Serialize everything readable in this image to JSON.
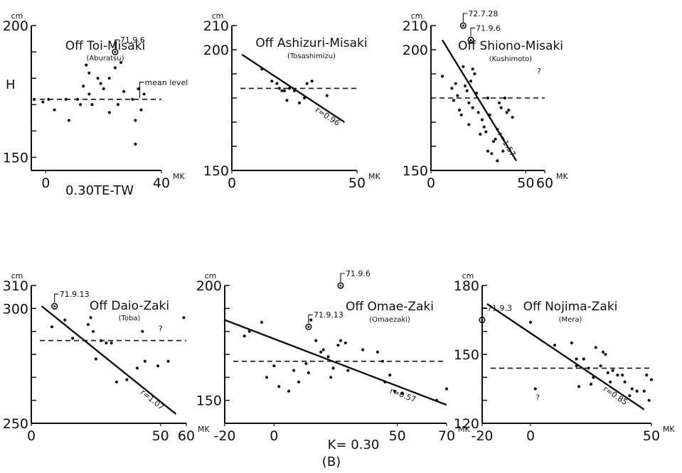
{
  "figure": {
    "caption": "(B)",
    "x_label_top": "0.30TE-TW",
    "x_label_bottom": "K= 0.30"
  },
  "chart_data": [
    {
      "type": "scatter",
      "title": "Off Toi-Misaki",
      "subtitle": "(Aburatsu)",
      "y_unit": "cm",
      "x_unit": "MK",
      "ylabel": "H",
      "xlim": [
        -5,
        40
      ],
      "ylim": [
        145,
        200
      ],
      "x_ticks": [
        {
          "v": 0,
          "label": "0"
        },
        {
          "v": 40,
          "label": "40"
        }
      ],
      "y_ticks": [
        {
          "v": 200,
          "label": "200"
        },
        {
          "v": 150,
          "label": "150"
        }
      ],
      "points": [
        [
          -4,
          172
        ],
        [
          -1,
          171
        ],
        [
          1,
          172
        ],
        [
          3,
          168
        ],
        [
          7,
          172
        ],
        [
          8,
          164
        ],
        [
          11,
          172
        ],
        [
          12,
          170
        ],
        [
          13,
          177
        ],
        [
          14,
          185
        ],
        [
          15,
          182
        ],
        [
          15,
          174
        ],
        [
          16,
          170
        ],
        [
          18,
          180
        ],
        [
          19,
          178
        ],
        [
          20,
          176
        ],
        [
          22,
          180
        ],
        [
          22,
          167
        ],
        [
          24,
          184
        ],
        [
          25,
          170
        ],
        [
          26,
          186
        ],
        [
          27,
          175
        ],
        [
          30,
          172
        ],
        [
          31,
          164
        ],
        [
          31,
          155
        ],
        [
          32,
          176
        ],
        [
          33,
          168
        ],
        [
          34,
          174
        ]
      ],
      "mean_level": 172,
      "mean_level_label": "mean level",
      "highlight": [
        {
          "x": 24,
          "y": 190,
          "label": "71.9.6"
        }
      ]
    },
    {
      "type": "scatter",
      "title": "Off Ashizuri-Misaki",
      "subtitle": "(Tosashimizu)",
      "y_unit": "cm",
      "x_unit": "MK",
      "xlim": [
        0,
        50
      ],
      "ylim": [
        150,
        210
      ],
      "x_ticks": [
        {
          "v": 0,
          "label": "0"
        },
        {
          "v": 50,
          "label": "50"
        }
      ],
      "y_ticks": [
        {
          "v": 210,
          "label": "210"
        },
        {
          "v": 200,
          "label": "200"
        },
        {
          "v": 150,
          "label": "150"
        }
      ],
      "points": [
        [
          12,
          192
        ],
        [
          16,
          187
        ],
        [
          18,
          186
        ],
        [
          19,
          184
        ],
        [
          20,
          183
        ],
        [
          21,
          183
        ],
        [
          22,
          179
        ],
        [
          23,
          184
        ],
        [
          25,
          183
        ],
        [
          27,
          178
        ],
        [
          29,
          180
        ],
        [
          30,
          186
        ],
        [
          32,
          187
        ],
        [
          38,
          181
        ]
      ],
      "mean_level": 184,
      "regression": {
        "x1": 4,
        "y1": 198,
        "x2": 45,
        "y2": 170
      },
      "r_label": "r=0.96"
    },
    {
      "type": "scatter",
      "title": "Off Shiono-Misaki",
      "subtitle": "(Kushimoto)",
      "y_unit": "cm",
      "x_unit": "MK",
      "xlim": [
        0,
        60
      ],
      "ylim": [
        150,
        210
      ],
      "x_ticks": [
        {
          "v": 0,
          "label": "0"
        },
        {
          "v": 50,
          "label": "50"
        },
        {
          "v": 60,
          "label": "60"
        }
      ],
      "y_ticks": [
        {
          "v": 210,
          "label": "210"
        },
        {
          "v": 200,
          "label": "200"
        },
        {
          "v": 150,
          "label": "150"
        }
      ],
      "points": [
        [
          6,
          189
        ],
        [
          11,
          184
        ],
        [
          12,
          179
        ],
        [
          13,
          186
        ],
        [
          14,
          181
        ],
        [
          15,
          175
        ],
        [
          16,
          173
        ],
        [
          17,
          193
        ],
        [
          18,
          185
        ],
        [
          19,
          183
        ],
        [
          20,
          178
        ],
        [
          20,
          169
        ],
        [
          21,
          187
        ],
        [
          22,
          192
        ],
        [
          23,
          190
        ],
        [
          22,
          176
        ],
        [
          24,
          182
        ],
        [
          25,
          174
        ],
        [
          26,
          165
        ],
        [
          27,
          171
        ],
        [
          28,
          168
        ],
        [
          29,
          166
        ],
        [
          30,
          158
        ],
        [
          30,
          180
        ],
        [
          31,
          173
        ],
        [
          32,
          157
        ],
        [
          33,
          162
        ],
        [
          34,
          163
        ],
        [
          35,
          154
        ],
        [
          35,
          167
        ],
        [
          36,
          178
        ],
        [
          37,
          176
        ],
        [
          38,
          158
        ],
        [
          39,
          180
        ],
        [
          40,
          174
        ],
        [
          41,
          175
        ],
        [
          43,
          172
        ]
      ],
      "mean_level": 180,
      "regression": {
        "x1": 6,
        "y1": 204,
        "x2": 45,
        "y2": 154
      },
      "r_label": "r=1.57",
      "highlight": [
        {
          "x": 17,
          "y": 210,
          "label": "72.7.28"
        },
        {
          "x": 21,
          "y": 204,
          "label": "71.9.6"
        }
      ],
      "question_mark": {
        "x": 57,
        "y": 190,
        "label": "?"
      }
    },
    {
      "type": "scatter",
      "title": "Off Daio-Zaki",
      "subtitle": "(Toba)",
      "y_unit": "cm",
      "x_unit": "MK",
      "xlim": [
        0,
        60
      ],
      "ylim": [
        250,
        310
      ],
      "x_ticks": [
        {
          "v": 0,
          "label": "0"
        },
        {
          "v": 50,
          "label": "50"
        },
        {
          "v": 60,
          "label": "60"
        }
      ],
      "y_ticks": [
        {
          "v": 310,
          "label": "310"
        },
        {
          "v": 300,
          "label": "300"
        },
        {
          "v": 250,
          "label": "250"
        }
      ],
      "points": [
        [
          8,
          292
        ],
        [
          13,
          295
        ],
        [
          16,
          287
        ],
        [
          22,
          293
        ],
        [
          23,
          296
        ],
        [
          24,
          290
        ],
        [
          25,
          278
        ],
        [
          27,
          286
        ],
        [
          29,
          285
        ],
        [
          31,
          285
        ],
        [
          33,
          268
        ],
        [
          37,
          269
        ],
        [
          41,
          274
        ],
        [
          43,
          290
        ],
        [
          44,
          277
        ],
        [
          49,
          275
        ],
        [
          53,
          277
        ],
        [
          59,
          296
        ]
      ],
      "mean_level": 286,
      "regression": {
        "x1": 4,
        "y1": 301,
        "x2": 56,
        "y2": 254
      },
      "r_label": "r=1.07",
      "highlight": [
        {
          "x": 9,
          "y": 301,
          "label": "71.9.13"
        }
      ],
      "question_mark": {
        "x": 50,
        "y": 290,
        "label": "?"
      }
    },
    {
      "type": "scatter",
      "title": "Off Omae-Zaki",
      "subtitle": "(Omaezaki)",
      "y_unit": "cm",
      "x_unit": "MK",
      "xlim": [
        -20,
        70
      ],
      "ylim": [
        140,
        200
      ],
      "x_ticks": [
        {
          "v": -20,
          "label": "-20"
        },
        {
          "v": 0,
          "label": "0"
        },
        {
          "v": 50,
          "label": "50"
        },
        {
          "v": 70,
          "label": "70"
        }
      ],
      "y_ticks": [
        {
          "v": 200,
          "label": "200"
        },
        {
          "v": 150,
          "label": "150"
        }
      ],
      "points": [
        [
          -12,
          178
        ],
        [
          -10,
          180
        ],
        [
          -5,
          184
        ],
        [
          -3,
          160
        ],
        [
          0,
          165
        ],
        [
          2,
          156
        ],
        [
          6,
          154
        ],
        [
          8,
          163
        ],
        [
          10,
          158
        ],
        [
          13,
          166
        ],
        [
          14,
          162
        ],
        [
          15,
          185
        ],
        [
          17,
          176
        ],
        [
          19,
          171
        ],
        [
          20,
          172
        ],
        [
          22,
          169
        ],
        [
          23,
          160
        ],
        [
          24,
          164
        ],
        [
          26,
          174
        ],
        [
          27,
          176
        ],
        [
          29,
          175
        ],
        [
          30,
          163
        ],
        [
          36,
          172
        ],
        [
          42,
          171
        ],
        [
          44,
          167
        ],
        [
          45,
          158
        ],
        [
          47,
          161
        ],
        [
          49,
          154
        ],
        [
          52,
          153
        ],
        [
          66,
          150
        ],
        [
          70,
          155
        ]
      ],
      "mean_level": 167,
      "regression": {
        "x1": -20,
        "y1": 185,
        "x2": 70,
        "y2": 148
      },
      "r_label": "r=0.57",
      "highlight": [
        {
          "x": 14,
          "y": 182,
          "label": "71.9.13"
        },
        {
          "x": 27,
          "y": 200,
          "label": "71.9.6"
        }
      ]
    },
    {
      "type": "scatter",
      "title": "Off Nojima-Zaki",
      "subtitle": "(Mera)",
      "y_unit": "cm",
      "x_unit": "MK",
      "xlim": [
        -20,
        50
      ],
      "ylim": [
        120,
        180
      ],
      "x_ticks": [
        {
          "v": -20,
          "label": "-20"
        },
        {
          "v": 0,
          "label": "0"
        },
        {
          "v": 50,
          "label": "50"
        }
      ],
      "y_ticks": [
        {
          "v": 180,
          "label": "180"
        },
        {
          "v": 150,
          "label": "150"
        },
        {
          "v": 120,
          "label": "120"
        }
      ],
      "points": [
        [
          0,
          164
        ],
        [
          2,
          135
        ],
        [
          10,
          154
        ],
        [
          17,
          155
        ],
        [
          19,
          148
        ],
        [
          19,
          145
        ],
        [
          20,
          136
        ],
        [
          22,
          148
        ],
        [
          24,
          144
        ],
        [
          25,
          137
        ],
        [
          26,
          140
        ],
        [
          27,
          153
        ],
        [
          29,
          145
        ],
        [
          30,
          151
        ],
        [
          31,
          150
        ],
        [
          32,
          142
        ],
        [
          33,
          138
        ],
        [
          34,
          143
        ],
        [
          36,
          141
        ],
        [
          38,
          141
        ],
        [
          39,
          138
        ],
        [
          41,
          132
        ],
        [
          42,
          135
        ],
        [
          44,
          134
        ],
        [
          47,
          134
        ],
        [
          48,
          141
        ],
        [
          49,
          130
        ],
        [
          50,
          139
        ]
      ],
      "mean_level": 144,
      "regression": {
        "x1": -18,
        "y1": 172,
        "x2": 47,
        "y2": 126
      },
      "r_label": "r=0.85",
      "highlight": [
        {
          "x": -20,
          "y": 165,
          "label": "71.9.3"
        }
      ],
      "question_mark": {
        "x": 3,
        "y": 130,
        "label": "?"
      }
    }
  ]
}
